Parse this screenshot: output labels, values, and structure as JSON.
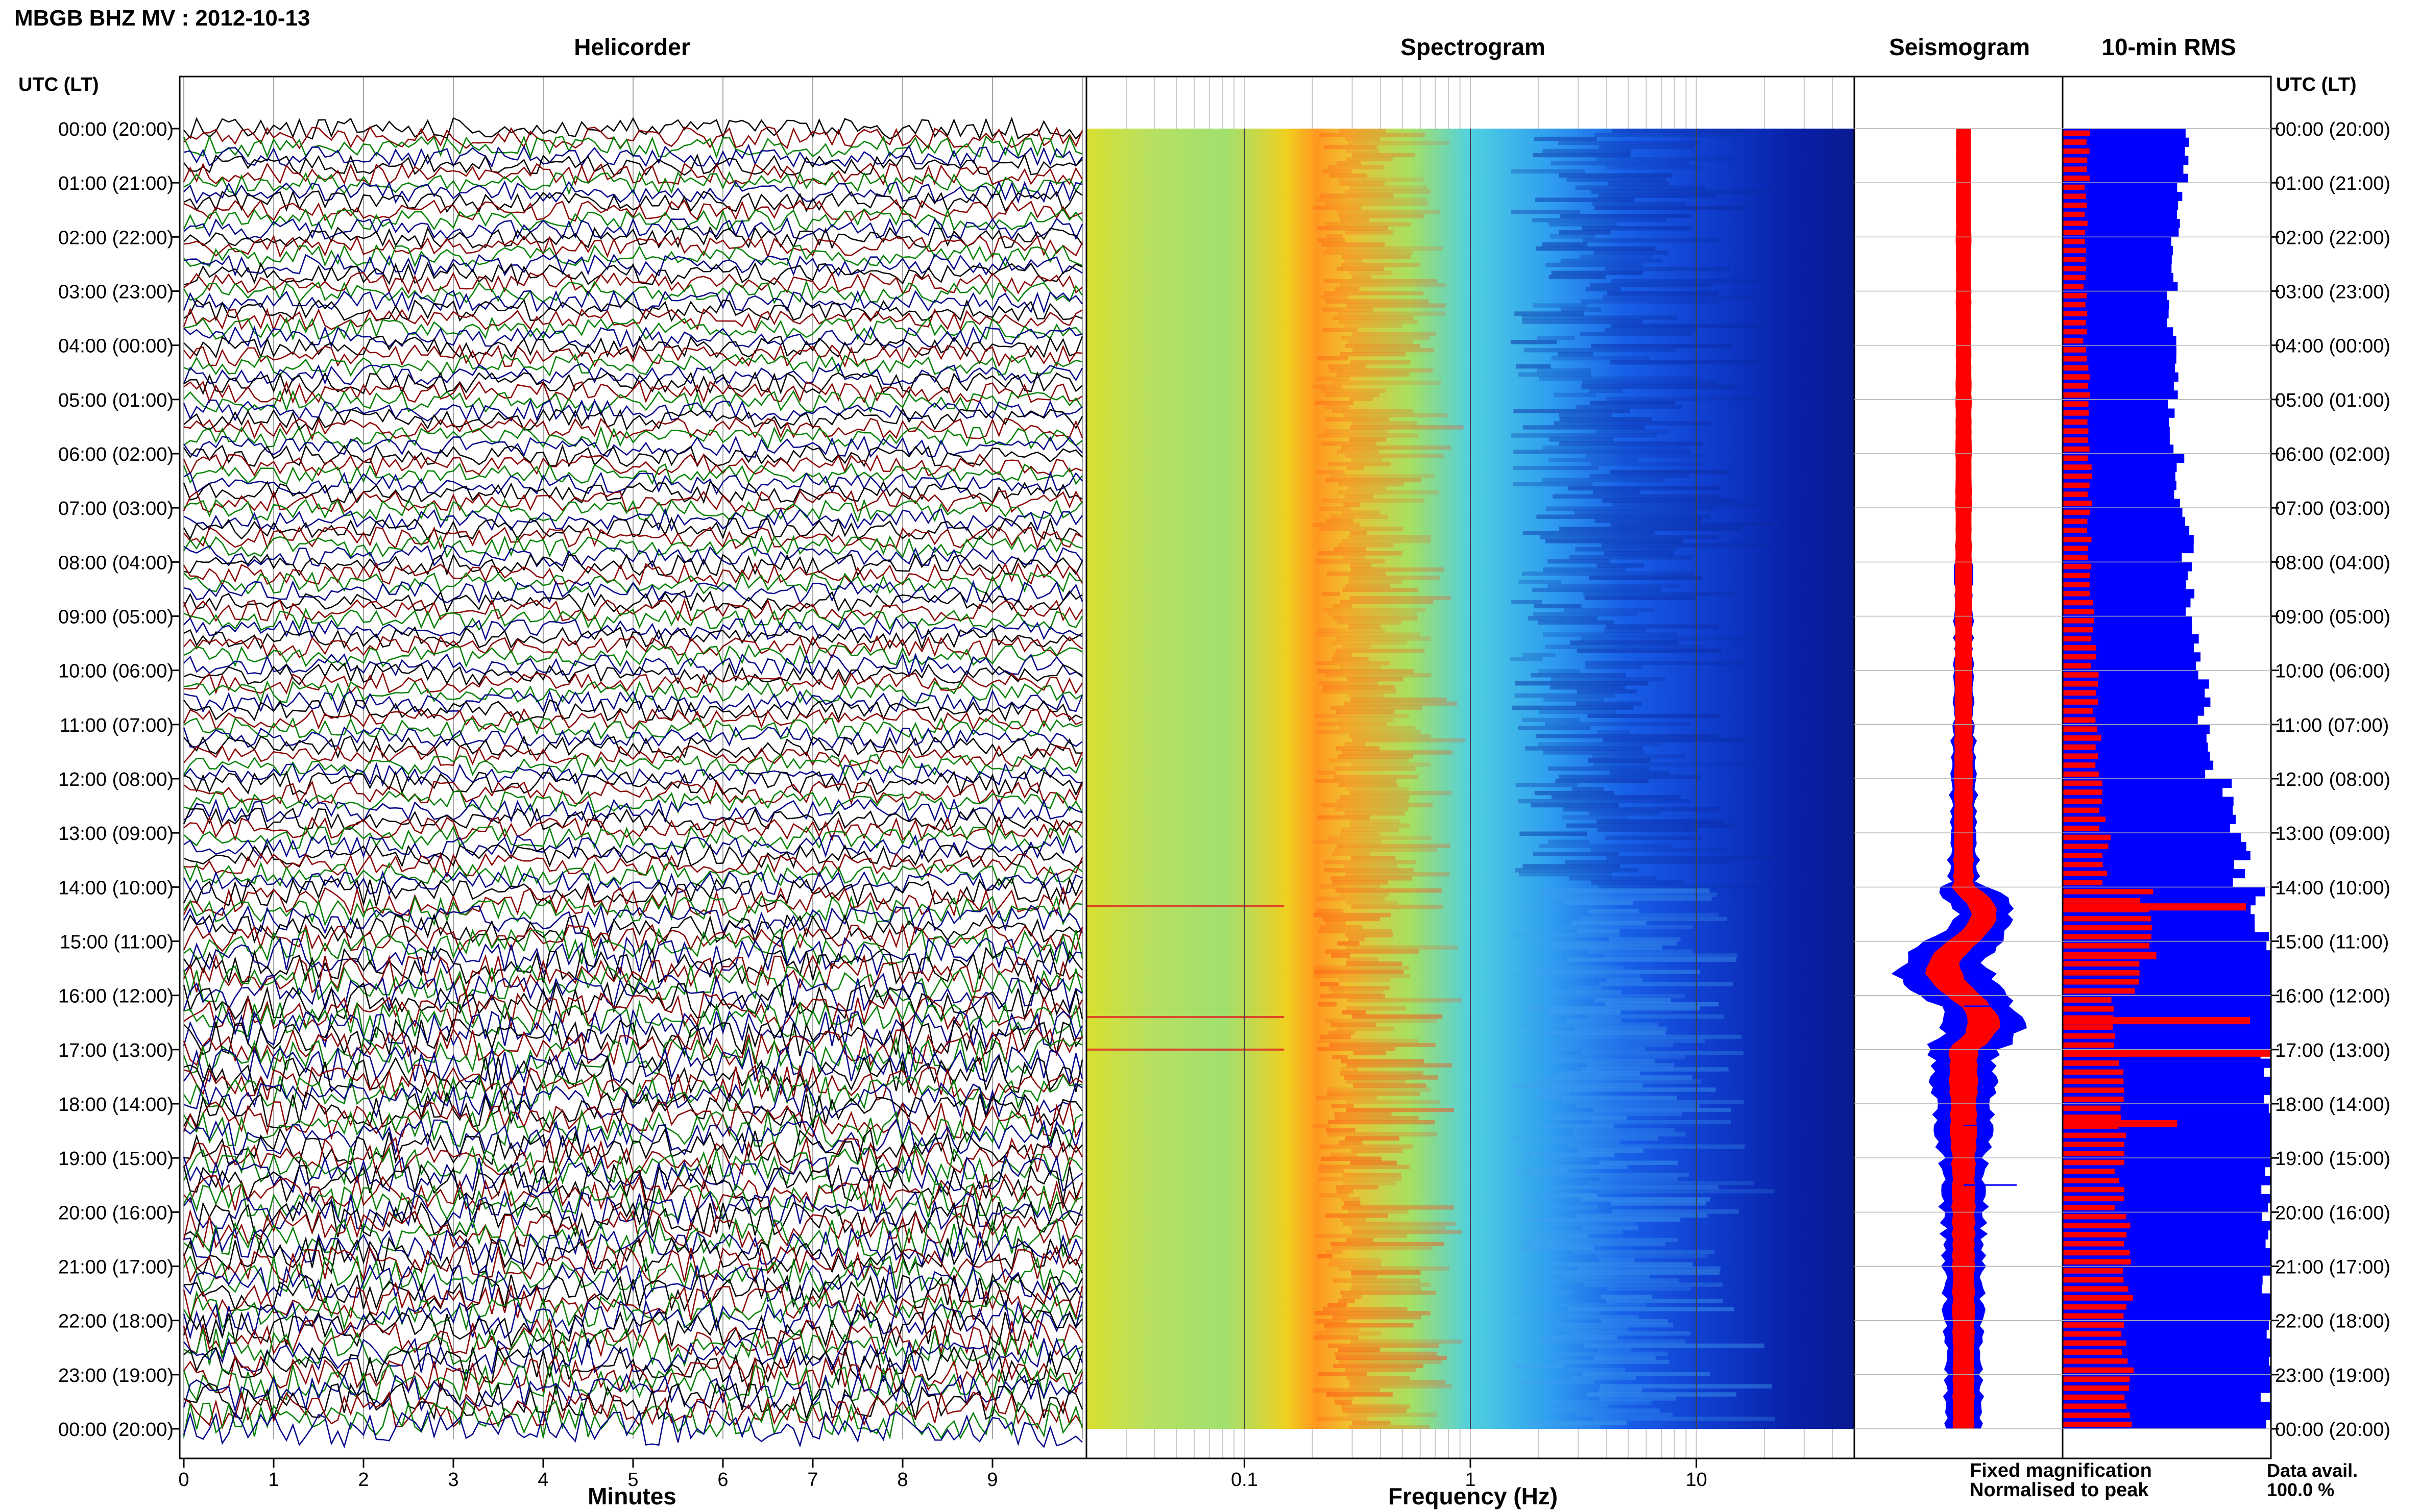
{
  "header": {
    "title": "MBGB BHZ MV : 2012-10-13"
  },
  "panels": {
    "helicorder": "Helicorder",
    "spectrogram": "Spectrogram",
    "seismogram": "Seismogram",
    "rms": "10-min RMS"
  },
  "time_axis": {
    "label": "UTC (LT)",
    "ticks": [
      "00:00 (20:00)",
      "01:00 (21:00)",
      "02:00 (22:00)",
      "03:00 (23:00)",
      "04:00 (00:00)",
      "05:00 (01:00)",
      "06:00 (02:00)",
      "07:00 (03:00)",
      "08:00 (04:00)",
      "09:00 (05:00)",
      "10:00 (06:00)",
      "11:00 (07:00)",
      "12:00 (08:00)",
      "13:00 (09:00)",
      "14:00 (10:00)",
      "15:00 (11:00)",
      "16:00 (12:00)",
      "17:00 (13:00)",
      "18:00 (14:00)",
      "19:00 (15:00)",
      "20:00 (16:00)",
      "21:00 (17:00)",
      "22:00 (18:00)",
      "23:00 (19:00)",
      "00:00 (20:00)"
    ]
  },
  "minutes_axis": {
    "label": "Minutes",
    "ticks": [
      "0",
      "1",
      "2",
      "3",
      "4",
      "5",
      "6",
      "7",
      "8",
      "9"
    ]
  },
  "frequency_axis": {
    "label": "Frequency (Hz)",
    "ticks": [
      "0.1",
      "1",
      "10"
    ]
  },
  "legend": {
    "fixed": "Fixed magnification",
    "normalised": "Normalised to peak",
    "fixed_color": "#0000ff",
    "normalised_color": "#ff0000"
  },
  "data_availability": {
    "label": "Data avail.",
    "value": "100.0 %"
  },
  "colors": {
    "trace_cycle": [
      "#000000",
      "#8b0000",
      "#008000",
      "#00008b"
    ],
    "rms_fixed": "#0000ff",
    "rms_norm": "#ff0000"
  },
  "chart_data": {
    "type": "heatmap",
    "helicorder": {
      "x_range_minutes": [
        0,
        10
      ],
      "rows": 144,
      "row_minutes": 10,
      "amplitude_level": [
        0.45,
        0.45,
        0.45,
        0.45,
        0.45,
        0.45,
        0.45,
        0.45,
        0.45,
        0.45,
        0.45,
        0.45,
        0.5,
        0.5,
        0.7,
        1.0,
        1.0,
        1.0,
        1.0,
        1.0,
        1.0,
        1.0,
        1.0,
        1.0
      ]
    },
    "spectrogram": {
      "freq_range_hz": [
        0.02,
        50
      ],
      "x_scale": "log",
      "peak_freq_hz": 0.25
    },
    "seismogram": {
      "fixed_envelope": [
        0.09,
        0.09,
        0.1,
        0.1,
        0.11,
        0.12,
        0.13,
        0.14,
        0.16,
        0.17,
        0.19,
        0.21,
        0.24,
        0.26,
        0.55,
        0.85,
        0.75,
        0.6,
        0.52,
        0.42,
        0.38,
        0.36,
        0.34,
        0.33
      ]
    },
    "rms_10min": {
      "fixed": [
        0.58,
        0.56,
        0.53,
        0.52,
        0.54,
        0.53,
        0.56,
        0.6,
        0.62,
        0.64,
        0.68,
        0.72,
        0.8,
        0.86,
        0.95,
        1.0,
        1.0,
        1.0,
        1.0,
        1.0,
        1.0,
        1.0,
        1.0,
        1.0
      ],
      "normalised": [
        0.12,
        0.11,
        0.11,
        0.11,
        0.12,
        0.12,
        0.13,
        0.13,
        0.14,
        0.15,
        0.16,
        0.17,
        0.19,
        0.21,
        0.4,
        0.38,
        0.26,
        0.3,
        0.28,
        0.27,
        0.3,
        0.32,
        0.31,
        0.31
      ],
      "spikes": [
        {
          "hour": 14.3,
          "value": 0.88
        },
        {
          "hour": 15.2,
          "value": 0.45
        },
        {
          "hour": 16.4,
          "value": 0.9
        },
        {
          "hour": 17.0,
          "value": 1.0
        },
        {
          "hour": 18.3,
          "value": 0.55
        }
      ]
    }
  }
}
